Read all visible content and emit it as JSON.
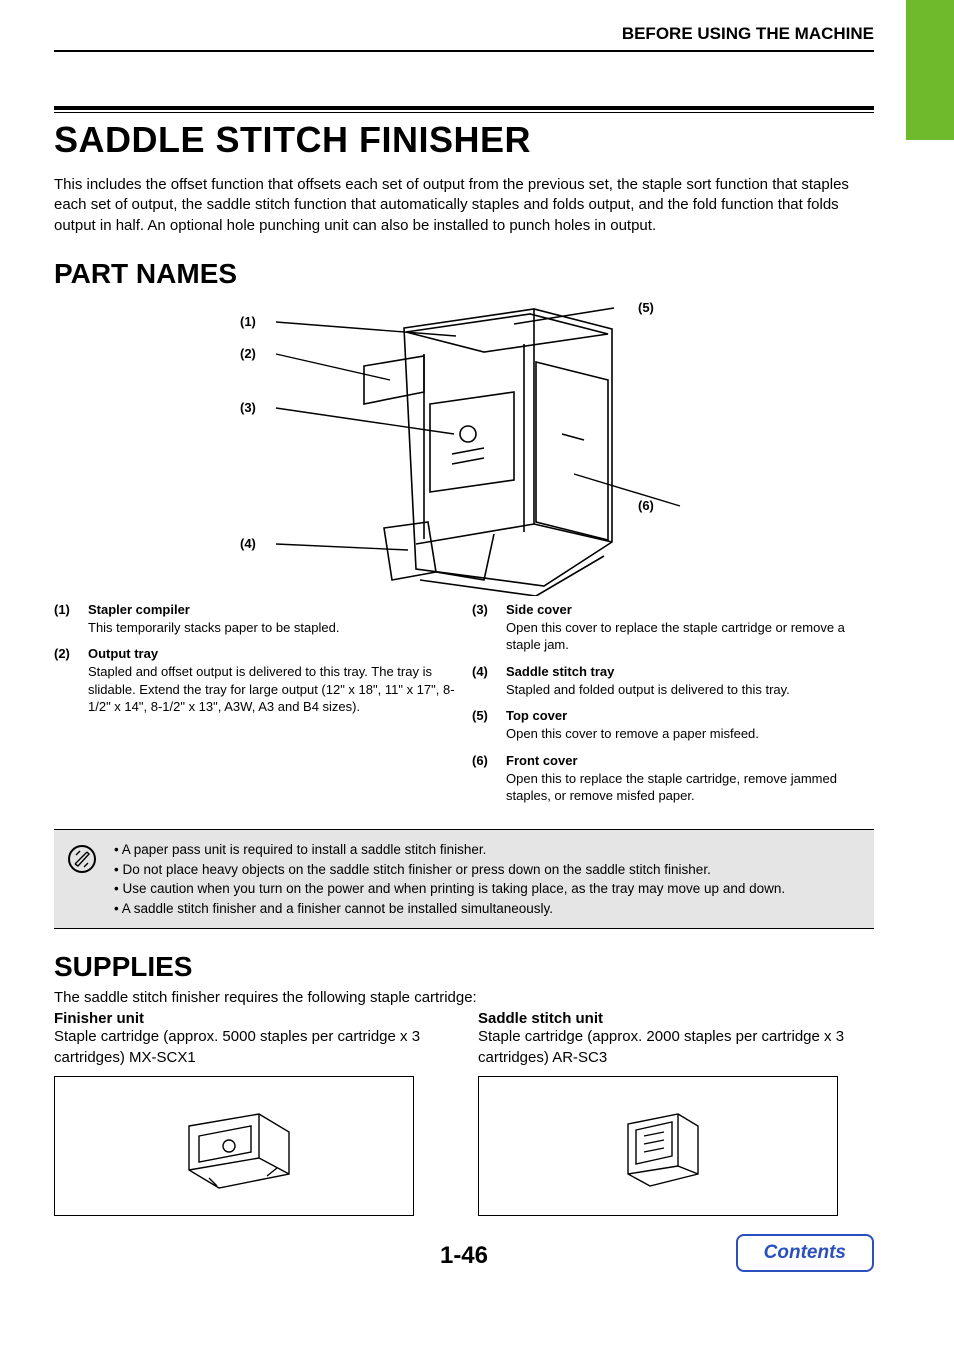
{
  "running_head": "BEFORE USING THE MACHINE",
  "title": "SADDLE STITCH FINISHER",
  "intro": "This includes the offset function that offsets each set of output from the previous set, the staple sort function that staples each set of output, the saddle stitch function that automatically staples and folds output, and the fold function that folds output in half. An optional hole punching unit can also be installed to punch holes in output.",
  "section_parts": "PART NAMES",
  "diagram_labels": {
    "l1": "(1)",
    "l2": "(2)",
    "l3": "(3)",
    "l4": "(4)",
    "l5": "(5)",
    "l6": "(6)"
  },
  "parts_left": [
    {
      "num": "(1)",
      "title": "Stapler compiler",
      "desc": "This temporarily stacks paper to be stapled."
    },
    {
      "num": "(2)",
      "title": "Output tray",
      "desc": "Stapled and offset output is delivered to this tray. The tray is slidable. Extend the tray for large output (12\" x 18\", 11\" x 17\", 8-1/2\" x 14\", 8-1/2\" x 13\", A3W, A3 and B4 sizes)."
    }
  ],
  "parts_right": [
    {
      "num": "(3)",
      "title": "Side cover",
      "desc": "Open this cover to replace the staple cartridge or remove a staple jam."
    },
    {
      "num": "(4)",
      "title": "Saddle stitch tray",
      "desc": "Stapled and folded output is delivered to this tray."
    },
    {
      "num": "(5)",
      "title": "Top cover",
      "desc": "Open this cover to remove a paper misfeed."
    },
    {
      "num": "(6)",
      "title": "Front cover",
      "desc": "Open this to replace the staple cartridge, remove jammed staples, or remove misfed paper."
    }
  ],
  "notes": [
    "A paper pass unit is required to install a saddle stitch finisher.",
    "Do not place heavy objects on the saddle stitch finisher or press down on the saddle stitch finisher.",
    "Use caution when you turn on the power and when printing is taking place, as the tray may move up and down.",
    "A saddle stitch finisher and a finisher cannot be installed simultaneously."
  ],
  "section_supplies": "SUPPLIES",
  "supplies_intro": "The saddle stitch finisher requires the following staple cartridge:",
  "supplies": [
    {
      "title": "Finisher unit",
      "desc": "Staple cartridge (approx. 5000 staples per cartridge x 3 cartridges) MX-SCX1"
    },
    {
      "title": "Saddle stitch unit",
      "desc": "Staple cartridge (approx. 2000 staples per cartridge x 3 cartridges) AR-SC3"
    }
  ],
  "page_number": "1-46",
  "contents_button": "Contents",
  "colors": {
    "accent_green": "#6fba2c",
    "link_blue": "#2a4fbf",
    "note_bg": "#e5e5e5"
  }
}
